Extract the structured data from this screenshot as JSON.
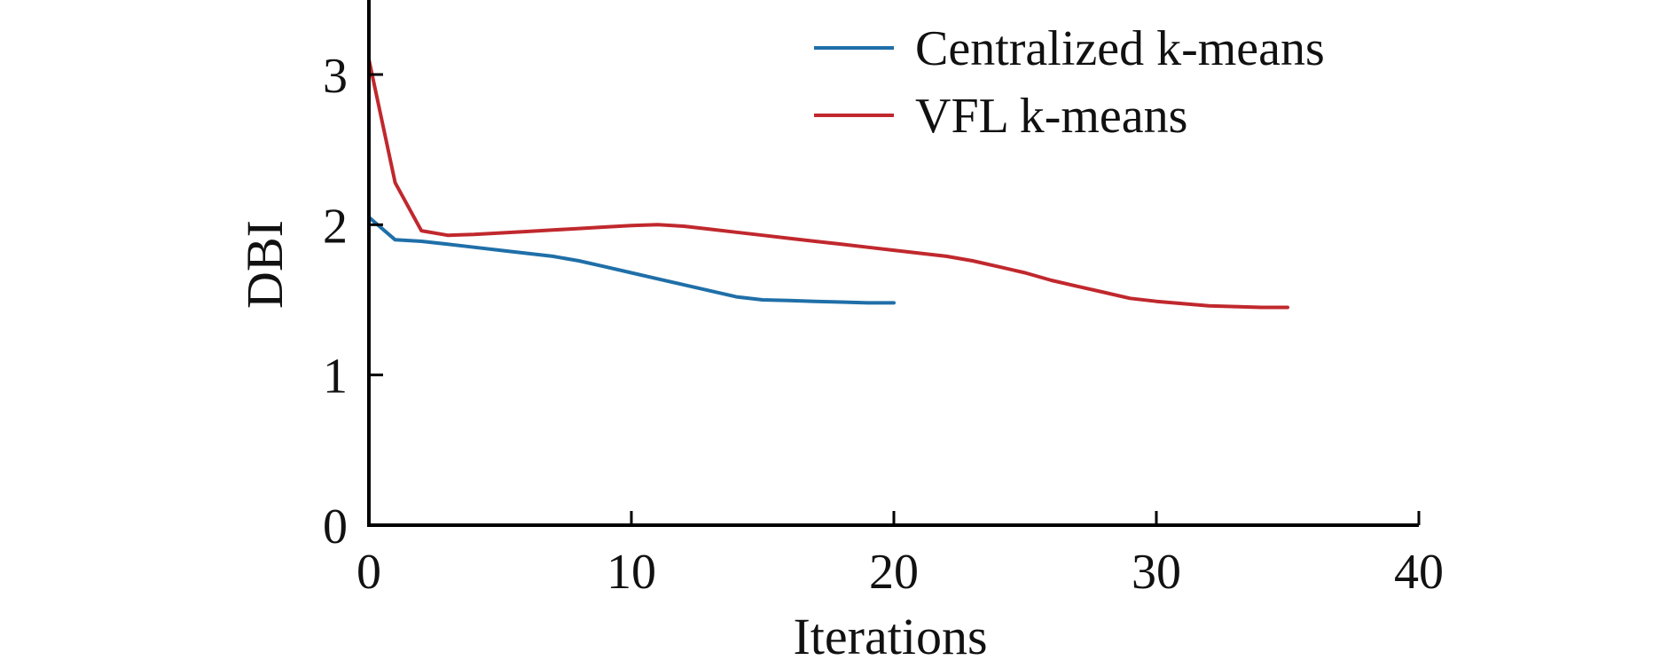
{
  "chart_data": {
    "type": "line",
    "xlabel": "Iterations",
    "ylabel": "DBI",
    "xlim": [
      0,
      40
    ],
    "ylim": [
      0,
      3.5
    ],
    "xticks": [
      0,
      10,
      20,
      30,
      40
    ],
    "yticks": [
      0,
      1,
      2,
      3
    ],
    "grid": false,
    "legend_position": "top-right",
    "series": [
      {
        "name": "Centralized k-means",
        "color": "#1f6fa8",
        "x": [
          0,
          1,
          2,
          3,
          4,
          5,
          6,
          7,
          8,
          9,
          10,
          11,
          12,
          13,
          14,
          15,
          16,
          17,
          18,
          19,
          20
        ],
        "y": [
          2.05,
          1.9,
          1.89,
          1.87,
          1.85,
          1.83,
          1.81,
          1.79,
          1.76,
          1.72,
          1.68,
          1.64,
          1.6,
          1.56,
          1.52,
          1.5,
          1.495,
          1.49,
          1.485,
          1.48,
          1.48
        ]
      },
      {
        "name": "VFL k-means",
        "color": "#c0282d",
        "x": [
          0,
          1,
          2,
          3,
          4,
          5,
          6,
          7,
          8,
          9,
          10,
          11,
          12,
          13,
          14,
          15,
          16,
          17,
          18,
          19,
          20,
          21,
          22,
          23,
          24,
          25,
          26,
          27,
          28,
          29,
          30,
          31,
          32,
          33,
          34,
          35
        ],
        "y": [
          3.1,
          2.28,
          1.96,
          1.93,
          1.935,
          1.945,
          1.955,
          1.965,
          1.975,
          1.985,
          1.995,
          2.0,
          1.99,
          1.97,
          1.95,
          1.93,
          1.91,
          1.89,
          1.87,
          1.85,
          1.83,
          1.81,
          1.79,
          1.76,
          1.72,
          1.68,
          1.63,
          1.59,
          1.55,
          1.51,
          1.49,
          1.475,
          1.46,
          1.455,
          1.45,
          1.45
        ]
      }
    ]
  }
}
